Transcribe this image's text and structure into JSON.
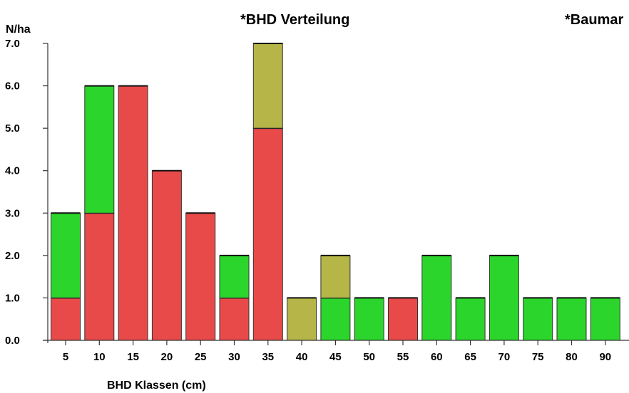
{
  "chart_data": {
    "type": "bar",
    "stacked": true,
    "title": "*BHD Verteilung",
    "side_title": "*Baumar",
    "ylabel": "N/ha",
    "xlabel": "BHD Klassen (cm)",
    "ylim": [
      0,
      7
    ],
    "yticks": [
      "0.0",
      "1.0",
      "2.0",
      "3.0",
      "4.0",
      "5.0",
      "6.0",
      "7.0"
    ],
    "categories": [
      "5",
      "10",
      "15",
      "20",
      "25",
      "30",
      "35",
      "40",
      "45",
      "50",
      "55",
      "60",
      "65",
      "70",
      "75",
      "80",
      "90"
    ],
    "series": [
      {
        "color": "#e84a4a",
        "values": [
          1,
          3,
          6,
          4,
          3,
          1,
          5,
          0,
          0,
          0,
          1,
          0,
          0,
          0,
          0,
          0,
          0
        ]
      },
      {
        "color": "#2bd52b",
        "values": [
          2,
          3,
          0,
          0,
          0,
          1,
          0,
          0,
          1,
          1,
          0,
          2,
          1,
          2,
          1,
          1,
          1
        ]
      },
      {
        "color": "#b5b548",
        "values": [
          0,
          0,
          0,
          0,
          0,
          0,
          2,
          1,
          1,
          0,
          0,
          0,
          0,
          0,
          0,
          0,
          0
        ]
      }
    ],
    "grid": false,
    "legend": "none"
  }
}
